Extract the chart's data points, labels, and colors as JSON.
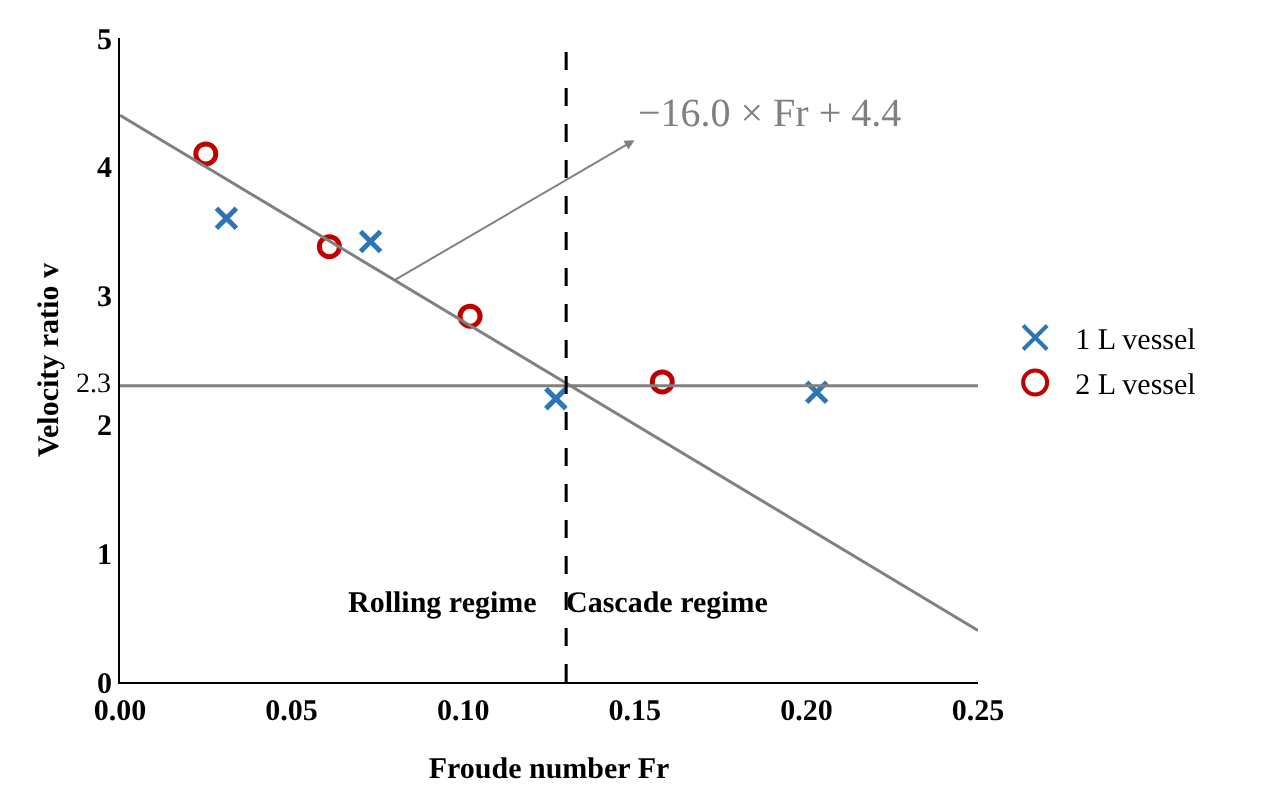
{
  "chart_data": {
    "type": "scatter",
    "xlabel": "Froude number Fr",
    "ylabel": "Velocity ratio v",
    "xlim": [
      0,
      0.25
    ],
    "xticks": [
      {
        "value": 0,
        "label": "0.00"
      },
      {
        "value": 0.05,
        "label": "0.05"
      },
      {
        "value": 0.1,
        "label": "0.10"
      },
      {
        "value": 0.15,
        "label": "0.15"
      },
      {
        "value": 0.2,
        "label": "0.20"
      },
      {
        "value": 0.25,
        "label": "0.25"
      }
    ],
    "ylim": [
      0,
      5
    ],
    "yticks": [
      0,
      1,
      2,
      3,
      4,
      5
    ],
    "series": [
      {
        "name": "1 L vessel",
        "marker": "cross",
        "color": "#2e75b6",
        "x": [
          0.031,
          0.073,
          0.127,
          0.203
        ],
        "values": [
          3.6,
          3.42,
          2.2,
          2.25
        ]
      },
      {
        "name": "2 L vessel",
        "marker": "circle",
        "color": "#c00000",
        "x": [
          0.025,
          0.061,
          0.102,
          0.158
        ],
        "values": [
          4.1,
          3.38,
          2.84,
          2.33
        ]
      },
      {
        "type": "line",
        "color": "#808080",
        "x": [
          0,
          0.25
        ],
        "values": [
          4.4,
          0.4
        ]
      }
    ],
    "ref_lines": [
      {
        "axis": "y",
        "value": 2.3,
        "label": "2.3",
        "color": "#808080",
        "line_style": "solid"
      },
      {
        "axis": "x",
        "value": 0.13,
        "label": null,
        "color": "#000000",
        "line_style": "dashed"
      }
    ],
    "annotations": [
      {
        "text": "−16.0 × Fr + 4.4",
        "x": 0.08,
        "y": 3.12
      },
      "Rolling regime",
      "Cascade regime"
    ],
    "legend": "right"
  }
}
